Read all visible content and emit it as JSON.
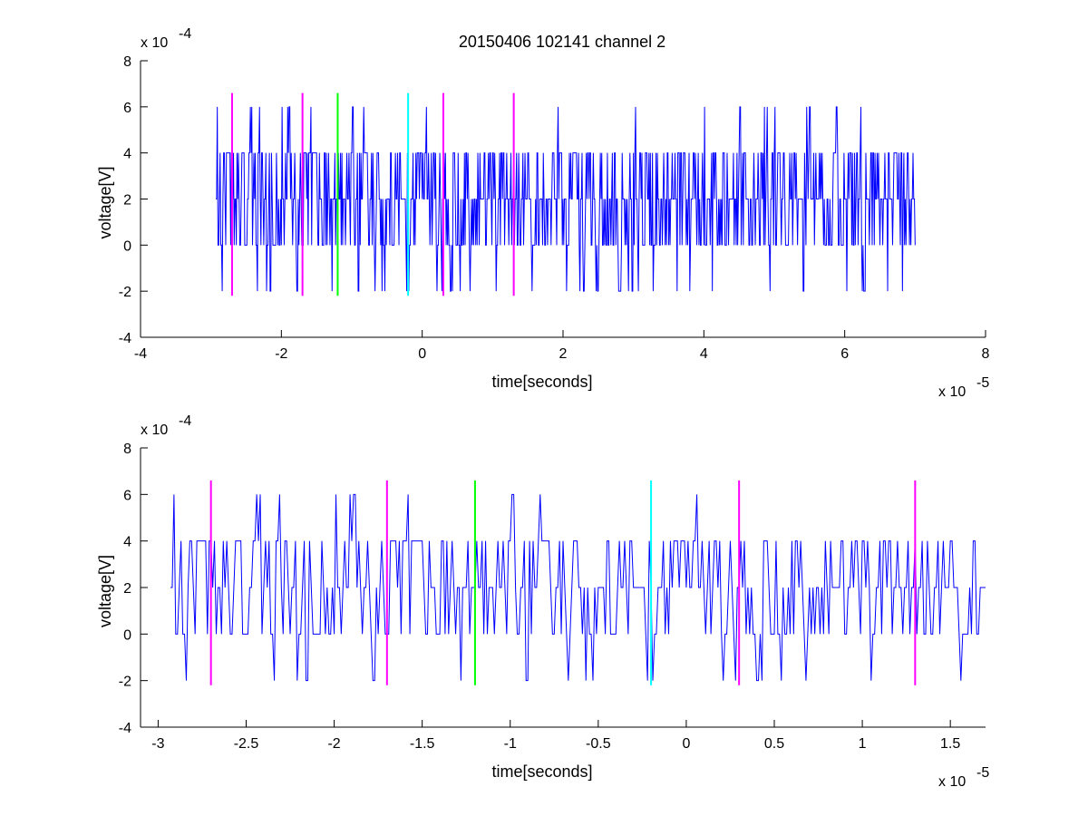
{
  "title": "20150406 102141 channel 2",
  "colors": {
    "signal": "#0000ff",
    "magenta": "#ff00ff",
    "green": "#00ff00",
    "cyan": "#00ffff",
    "axis": "#000000"
  },
  "chart_data": [
    {
      "type": "line",
      "title": "20150406 102141 channel 2",
      "xlabel": "time[seconds]",
      "ylabel": "voltage[V]",
      "x_multiplier_label": "x 10",
      "x_multiplier_exp": "-5",
      "y_multiplier_label": "x 10",
      "y_multiplier_exp": "-4",
      "xlim": [
        -4e-05,
        8e-05
      ],
      "ylim": [
        -0.0004,
        0.0008
      ],
      "xticks": [
        -4,
        -2,
        0,
        2,
        4,
        6,
        8
      ],
      "xtick_labels": [
        "-4",
        "-2",
        "0",
        "2",
        "4",
        "6",
        "8"
      ],
      "yticks": [
        -4,
        -2,
        0,
        2,
        4,
        6,
        8
      ],
      "ytick_labels": [
        "-4",
        "-2",
        "0",
        "2",
        "4",
        "6",
        "8"
      ],
      "grid": false,
      "series": [
        {
          "color": "#0000ff",
          "x_range": [
            -2.93e-05,
            7e-05
          ],
          "x_step": 1e-07,
          "level_step": 0.0002,
          "levels": [
            -0.0002,
            0,
            0.0002,
            0.0004,
            0.0006
          ],
          "baseline": 0.0002
        }
      ],
      "markers": [
        {
          "x": -2.7e-05,
          "color": "#ff00ff",
          "y_range": [
            -0.00022,
            0.00066
          ]
        },
        {
          "x": -1.7e-05,
          "color": "#ff00ff",
          "y_range": [
            -0.00022,
            0.00066
          ]
        },
        {
          "x": -1.2e-05,
          "color": "#00ff00",
          "y_range": [
            -0.00022,
            0.00066
          ]
        },
        {
          "x": -2e-06,
          "color": "#00ffff",
          "y_range": [
            -0.00022,
            0.00066
          ]
        },
        {
          "x": 3e-06,
          "color": "#ff00ff",
          "y_range": [
            -0.00022,
            0.00066
          ]
        },
        {
          "x": 1.3e-05,
          "color": "#ff00ff",
          "y_range": [
            -0.00022,
            0.00066
          ]
        }
      ]
    },
    {
      "type": "line",
      "title": "",
      "xlabel": "time[seconds]",
      "ylabel": "voltage[V]",
      "x_multiplier_label": "x 10",
      "x_multiplier_exp": "-5",
      "y_multiplier_label": "x 10",
      "y_multiplier_exp": "-4",
      "xlim": [
        -3.1e-05,
        1.7e-05
      ],
      "ylim": [
        -0.0004,
        0.0008
      ],
      "xticks": [
        -3,
        -2.5,
        -2,
        -1.5,
        -1,
        -0.5,
        0,
        0.5,
        1,
        1.5
      ],
      "xtick_labels": [
        "-3",
        "-2.5",
        "-2",
        "-1.5",
        "-1",
        "-0.5",
        "0",
        "0.5",
        "1",
        "1.5"
      ],
      "yticks": [
        -4,
        -2,
        0,
        2,
        4,
        6,
        8
      ],
      "ytick_labels": [
        "-4",
        "-2",
        "0",
        "2",
        "4",
        "6",
        "8"
      ],
      "grid": false,
      "series": [
        {
          "color": "#0000ff",
          "x_range": [
            -2.93e-05,
            1.7e-05
          ],
          "x_step": 1e-07,
          "level_step": 0.0002,
          "levels": [
            -0.0002,
            0,
            0.0002,
            0.0004,
            0.0006
          ],
          "baseline": 0.0002
        }
      ],
      "markers": [
        {
          "x": -2.7e-05,
          "color": "#ff00ff",
          "y_range": [
            -0.00022,
            0.00066
          ]
        },
        {
          "x": -1.7e-05,
          "color": "#ff00ff",
          "y_range": [
            -0.00022,
            0.00066
          ]
        },
        {
          "x": -1.2e-05,
          "color": "#00ff00",
          "y_range": [
            -0.00022,
            0.00066
          ]
        },
        {
          "x": -2e-06,
          "color": "#00ffff",
          "y_range": [
            -0.00022,
            0.00066
          ]
        },
        {
          "x": 3e-06,
          "color": "#ff00ff",
          "y_range": [
            -0.00022,
            0.00066
          ]
        },
        {
          "x": 1.3e-05,
          "color": "#ff00ff",
          "y_range": [
            -0.00022,
            0.00066
          ]
        }
      ]
    }
  ]
}
